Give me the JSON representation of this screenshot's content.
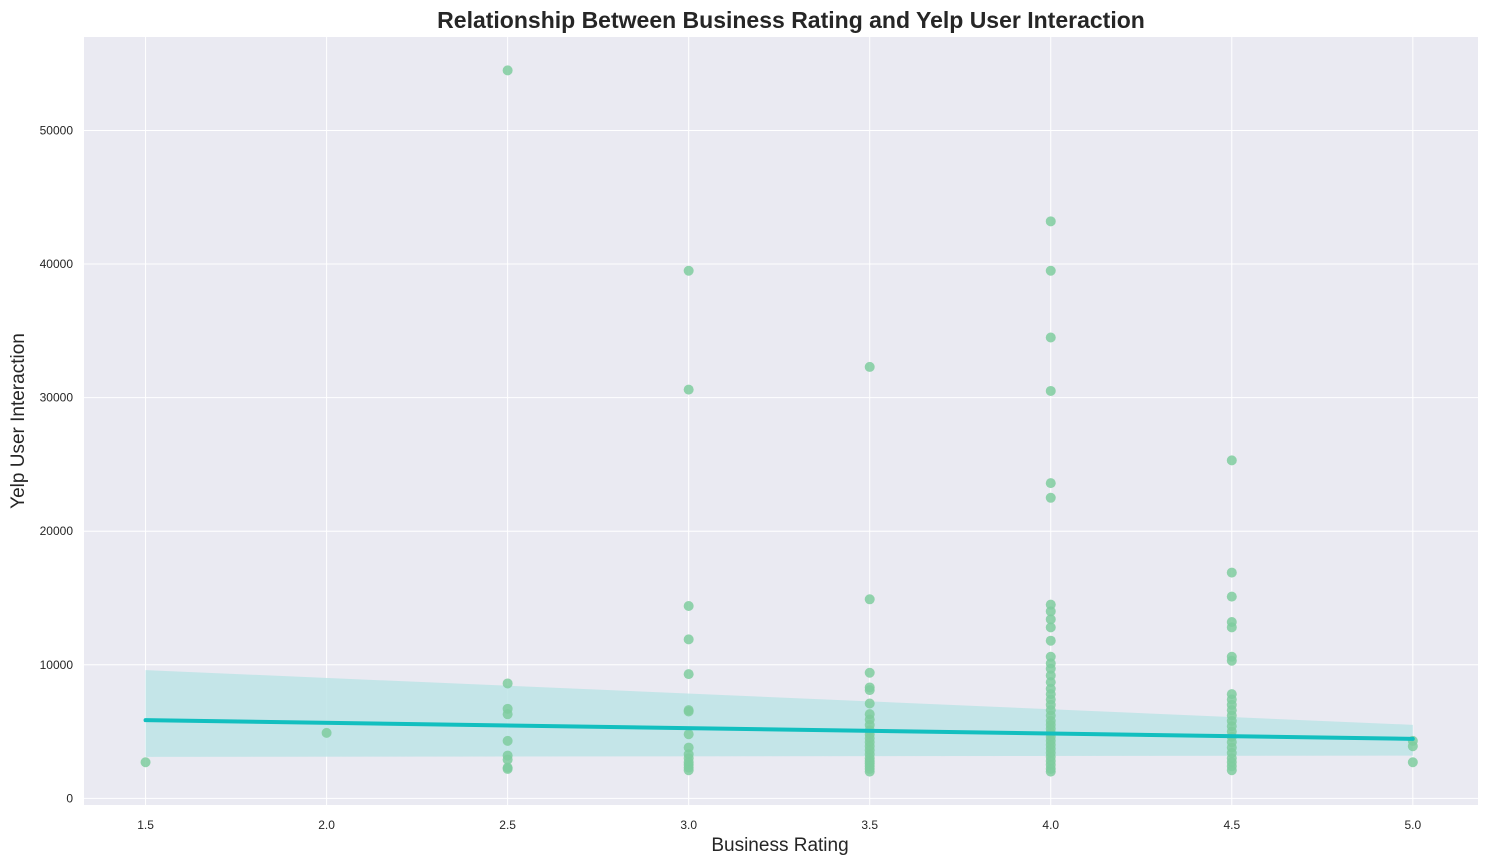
{
  "chart_data": {
    "type": "scatter",
    "title": "Relationship Between Business Rating and Yelp User Interaction",
    "xlabel": "Business Rating",
    "ylabel": "Yelp User Interaction",
    "xlim": [
      1.33,
      5.18
    ],
    "ylim": [
      -500,
      57000
    ],
    "xticks": [
      1.5,
      2.0,
      2.5,
      3.0,
      3.5,
      4.0,
      4.5,
      5.0
    ],
    "xtick_labels": [
      "1.5",
      "2.0",
      "2.5",
      "3.0",
      "3.5",
      "4.0",
      "4.5",
      "5.0"
    ],
    "yticks": [
      0,
      10000,
      20000,
      30000,
      40000,
      50000
    ],
    "ytick_labels": [
      "0",
      "10000",
      "20000",
      "30000",
      "40000",
      "50000"
    ],
    "grid": true,
    "legend": "none",
    "colors": {
      "background": "#eaeaf2",
      "grid": "#ffffff",
      "points": "#7fcc9f",
      "regression_line": "#12bfbf",
      "confidence_band": "#bde4e6"
    },
    "series": [
      {
        "points": [
          [
            1.5,
            2700
          ],
          [
            2.0,
            4900
          ],
          [
            2.5,
            54500
          ],
          [
            2.5,
            8600
          ],
          [
            2.5,
            6700
          ],
          [
            2.5,
            6300
          ],
          [
            2.5,
            4300
          ],
          [
            2.5,
            3200
          ],
          [
            2.5,
            2900
          ],
          [
            2.5,
            2300
          ],
          [
            2.5,
            2200
          ],
          [
            3.0,
            39500
          ],
          [
            3.0,
            30600
          ],
          [
            3.0,
            14400
          ],
          [
            3.0,
            11900
          ],
          [
            3.0,
            9300
          ],
          [
            3.0,
            6600
          ],
          [
            3.0,
            6500
          ],
          [
            3.0,
            4800
          ],
          [
            3.0,
            3800
          ],
          [
            3.0,
            3300
          ],
          [
            3.0,
            3000
          ],
          [
            3.0,
            2700
          ],
          [
            3.0,
            2500
          ],
          [
            3.0,
            2300
          ],
          [
            3.0,
            2100
          ],
          [
            3.5,
            32300
          ],
          [
            3.5,
            14900
          ],
          [
            3.5,
            9400
          ],
          [
            3.5,
            8300
          ],
          [
            3.5,
            8100
          ],
          [
            3.5,
            7100
          ],
          [
            3.5,
            6300
          ],
          [
            3.5,
            5900
          ],
          [
            3.5,
            5500
          ],
          [
            3.5,
            5100
          ],
          [
            3.5,
            4800
          ],
          [
            3.5,
            4500
          ],
          [
            3.5,
            4200
          ],
          [
            3.5,
            3900
          ],
          [
            3.5,
            3600
          ],
          [
            3.5,
            3300
          ],
          [
            3.5,
            3000
          ],
          [
            3.5,
            2800
          ],
          [
            3.5,
            2600
          ],
          [
            3.5,
            2400
          ],
          [
            3.5,
            2200
          ],
          [
            3.5,
            2000
          ],
          [
            4.0,
            43200
          ],
          [
            4.0,
            39500
          ],
          [
            4.0,
            34500
          ],
          [
            4.0,
            30500
          ],
          [
            4.0,
            23600
          ],
          [
            4.0,
            22500
          ],
          [
            4.0,
            14500
          ],
          [
            4.0,
            14000
          ],
          [
            4.0,
            13400
          ],
          [
            4.0,
            12800
          ],
          [
            4.0,
            11800
          ],
          [
            4.0,
            10600
          ],
          [
            4.0,
            10100
          ],
          [
            4.0,
            9700
          ],
          [
            4.0,
            9200
          ],
          [
            4.0,
            8700
          ],
          [
            4.0,
            8200
          ],
          [
            4.0,
            7800
          ],
          [
            4.0,
            7400
          ],
          [
            4.0,
            7000
          ],
          [
            4.0,
            6600
          ],
          [
            4.0,
            6200
          ],
          [
            4.0,
            5800
          ],
          [
            4.0,
            5500
          ],
          [
            4.0,
            5200
          ],
          [
            4.0,
            4900
          ],
          [
            4.0,
            4600
          ],
          [
            4.0,
            4300
          ],
          [
            4.0,
            4000
          ],
          [
            4.0,
            3700
          ],
          [
            4.0,
            3400
          ],
          [
            4.0,
            3100
          ],
          [
            4.0,
            2800
          ],
          [
            4.0,
            2500
          ],
          [
            4.0,
            2200
          ],
          [
            4.0,
            2000
          ],
          [
            4.5,
            25300
          ],
          [
            4.5,
            16900
          ],
          [
            4.5,
            15100
          ],
          [
            4.5,
            13200
          ],
          [
            4.5,
            12800
          ],
          [
            4.5,
            10600
          ],
          [
            4.5,
            10300
          ],
          [
            4.5,
            7800
          ],
          [
            4.5,
            7400
          ],
          [
            4.5,
            7000
          ],
          [
            4.5,
            6600
          ],
          [
            4.5,
            6200
          ],
          [
            4.5,
            5800
          ],
          [
            4.5,
            5400
          ],
          [
            4.5,
            5000
          ],
          [
            4.5,
            4600
          ],
          [
            4.5,
            4200
          ],
          [
            4.5,
            3800
          ],
          [
            4.5,
            3400
          ],
          [
            4.5,
            3000
          ],
          [
            4.5,
            2700
          ],
          [
            4.5,
            2400
          ],
          [
            4.5,
            2100
          ],
          [
            5.0,
            4300
          ],
          [
            5.0,
            3900
          ],
          [
            5.0,
            2700
          ]
        ]
      }
    ],
    "regression": {
      "x": [
        1.5,
        5.0
      ],
      "y": [
        5850,
        4450
      ],
      "ci_lower": [
        3100,
        3200
      ],
      "ci_upper": [
        9600,
        5500
      ]
    }
  }
}
